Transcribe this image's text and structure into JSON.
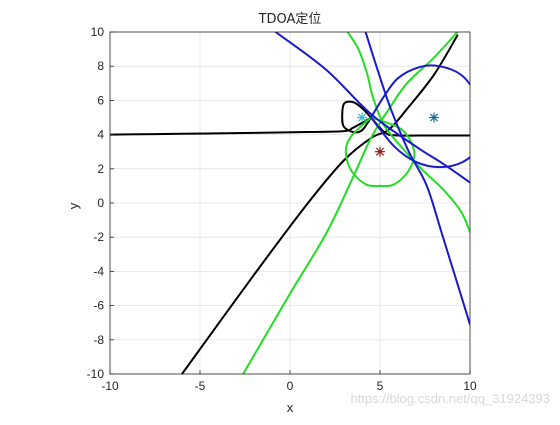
{
  "chart_data": {
    "type": "line",
    "title": "TDOA定位",
    "xlabel": "x",
    "ylabel": "y",
    "xlim": [
      -10,
      10
    ],
    "ylim": [
      -10,
      10
    ],
    "xticks": [
      "-10",
      "-5",
      "0",
      "5",
      "10"
    ],
    "yticks": [
      "-10",
      "-8",
      "-6",
      "-4",
      "-2",
      "0",
      "2",
      "4",
      "6",
      "8",
      "10"
    ],
    "grid": true,
    "colors": {
      "black": "#000000",
      "green": "#22dd22",
      "blue": "#1a1acc",
      "cyan_marker": "#33bbcc",
      "teal_marker": "#1a6f8f",
      "red_marker": "#8b1a1a"
    },
    "series": [
      {
        "color": "black",
        "points": [
          [
            -10,
            4.0
          ],
          [
            -6,
            4.05
          ],
          [
            -2,
            4.1
          ],
          [
            1,
            4.15
          ],
          [
            3,
            4.2
          ],
          [
            3.5,
            4.4
          ],
          [
            4.2,
            4.8
          ],
          [
            4.5,
            5.0
          ]
        ]
      },
      {
        "color": "black",
        "points": [
          [
            4.5,
            5.0
          ],
          [
            5.3,
            4.1
          ],
          [
            6,
            3.95
          ],
          [
            8,
            3.95
          ],
          [
            10,
            3.95
          ]
        ]
      },
      {
        "color": "black",
        "points": [
          [
            -6,
            -10
          ],
          [
            -2,
            -4.2
          ],
          [
            1,
            0
          ],
          [
            3,
            2.5
          ],
          [
            4.5,
            3.8
          ],
          [
            5.5,
            4.3
          ],
          [
            6.5,
            5.5
          ],
          [
            8,
            7.5
          ],
          [
            9.3,
            9.8
          ]
        ]
      },
      {
        "color": "black",
        "points": [
          [
            4.5,
            5.0
          ],
          [
            4.0,
            5.55
          ],
          [
            3.5,
            5.9
          ],
          [
            3.0,
            5.8
          ],
          [
            2.9,
            5.0
          ],
          [
            3.0,
            4.45
          ],
          [
            3.5,
            4.15
          ],
          [
            4.0,
            4.25
          ],
          [
            4.5,
            5.0
          ]
        ]
      },
      {
        "color": "green",
        "points": [
          [
            -2.6,
            -10
          ],
          [
            0,
            -5.3
          ],
          [
            2,
            -1.8
          ],
          [
            3.5,
            1.5
          ],
          [
            4.5,
            3.8
          ],
          [
            5.5,
            5.5
          ],
          [
            6.5,
            7.0
          ],
          [
            8,
            8.5
          ],
          [
            9.3,
            10
          ]
        ]
      },
      {
        "color": "green",
        "points": [
          [
            3.2,
            10
          ],
          [
            3.8,
            9
          ],
          [
            4.3,
            7.5
          ],
          [
            4.6,
            6.2
          ],
          [
            5.2,
            4.6
          ],
          [
            6.0,
            3.5
          ],
          [
            7.3,
            2.0
          ],
          [
            8.5,
            0.8
          ],
          [
            9.5,
            -0.5
          ],
          [
            10,
            -1.7
          ]
        ]
      },
      {
        "color": "green",
        "points": [
          [
            4.5,
            5.0
          ],
          [
            6.2,
            4.3
          ],
          [
            6.9,
            3.0
          ],
          [
            6.6,
            1.9
          ],
          [
            5.8,
            1.1
          ],
          [
            5.0,
            1.0
          ],
          [
            4.2,
            1.1
          ],
          [
            3.4,
            1.9
          ],
          [
            3.1,
            3.0
          ],
          [
            3.4,
            3.9
          ],
          [
            4.5,
            5.0
          ]
        ]
      },
      {
        "color": "blue",
        "points": [
          [
            -0.8,
            10
          ],
          [
            2,
            7.8
          ],
          [
            4.5,
            5.2
          ],
          [
            7,
            3.3
          ],
          [
            8.5,
            2.3
          ],
          [
            10,
            1.2
          ]
        ]
      },
      {
        "color": "blue",
        "points": [
          [
            4.2,
            10
          ],
          [
            4.8,
            8.0
          ],
          [
            5.6,
            5.5
          ],
          [
            6.6,
            3.0
          ],
          [
            7.6,
            1.0
          ],
          [
            8.5,
            -2.0
          ],
          [
            10,
            -7.1
          ]
        ]
      },
      {
        "color": "blue",
        "points": [
          [
            4.5,
            5.0
          ],
          [
            5.2,
            6.2
          ],
          [
            6.0,
            7.3
          ],
          [
            7.2,
            7.95
          ],
          [
            8.3,
            8.0
          ],
          [
            9.5,
            7.5
          ],
          [
            10.3,
            6.4
          ],
          [
            10.8,
            4.8
          ],
          [
            10.5,
            3.3
          ],
          [
            9.6,
            2.4
          ],
          [
            8.3,
            2.1
          ],
          [
            7.0,
            2.4
          ],
          [
            5.8,
            3.3
          ],
          [
            4.5,
            5.0
          ]
        ]
      }
    ],
    "markers": [
      {
        "x": 4.0,
        "y": 5.0,
        "symbol": "*",
        "color": "cyan_marker"
      },
      {
        "x": 8.0,
        "y": 5.0,
        "symbol": "*",
        "color": "teal_marker"
      },
      {
        "x": 5.0,
        "y": 3.0,
        "symbol": "*",
        "color": "red_marker"
      }
    ]
  },
  "watermark": "https://blog.csdn.net/qq_31924393"
}
